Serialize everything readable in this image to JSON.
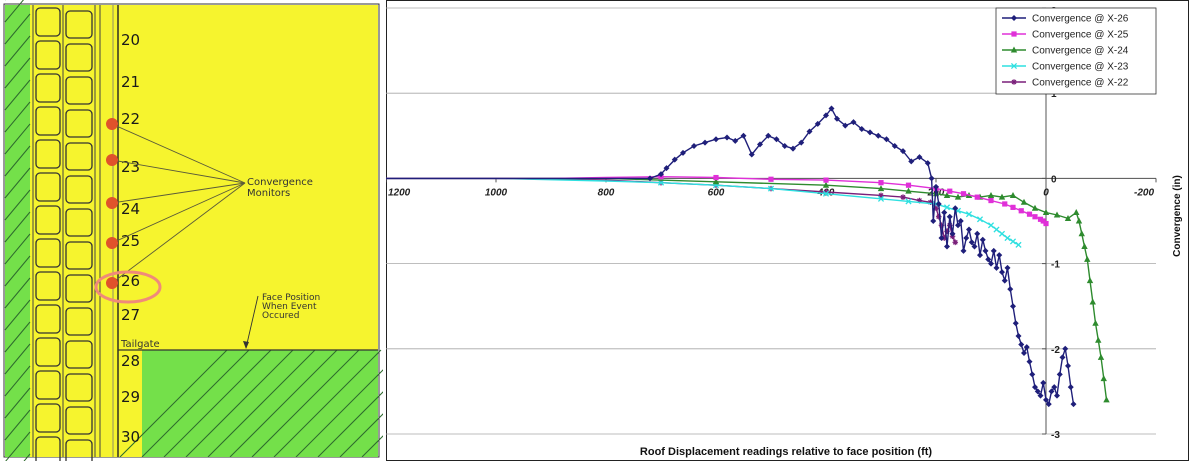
{
  "map": {
    "entry_labels": [
      "20",
      "21",
      "22",
      "23",
      "24",
      "25",
      "26",
      "27",
      "28",
      "29",
      "30"
    ],
    "monitor_entries": [
      "22",
      "23",
      "24",
      "25",
      "26"
    ],
    "highlighted_entry": "26",
    "monitor_label": [
      "Convergence",
      "Monitors"
    ],
    "face_label": [
      "Face Position",
      "When Event",
      "Occured"
    ],
    "tailgate_label": "Tailgate",
    "colors": {
      "panel": "#f6f42e",
      "gob": "#74e04a",
      "monitor": "#e0522b",
      "highlight": "#f08a7a",
      "line": "#5a5a3a"
    }
  },
  "chart_data": {
    "type": "line",
    "title": "",
    "xlabel": "Roof Displacement readings relative to face position (ft)",
    "ylabel": "Convergence (in)",
    "xlim": [
      1200,
      -200
    ],
    "ylim": [
      -3,
      2
    ],
    "x_reversed": true,
    "x_ticks": [
      1200,
      1000,
      800,
      600,
      400,
      200,
      0,
      -200
    ],
    "x_tick_labels": [
      "1200",
      "1000",
      "800",
      "600",
      "400",
      "200",
      "0",
      "-200"
    ],
    "y_ticks": [
      2,
      1,
      0,
      -1,
      -2,
      -3
    ],
    "y_tick_labels": [
      "2",
      "1",
      "0",
      "-1",
      "-2",
      "-3"
    ],
    "grid": "horizontal",
    "legend_position": "top-right",
    "series": [
      {
        "name": "Convergence @ X-26",
        "color": "#1f1f7a",
        "marker": "diamond",
        "points": [
          [
            1200,
            0
          ],
          [
            1100,
            0
          ],
          [
            1000,
            0
          ],
          [
            900,
            0
          ],
          [
            800,
            0
          ],
          [
            720,
            0
          ],
          [
            700,
            0.05
          ],
          [
            690,
            0.12
          ],
          [
            675,
            0.22
          ],
          [
            660,
            0.3
          ],
          [
            640,
            0.38
          ],
          [
            620,
            0.42
          ],
          [
            600,
            0.46
          ],
          [
            580,
            0.48
          ],
          [
            565,
            0.44
          ],
          [
            550,
            0.5
          ],
          [
            535,
            0.28
          ],
          [
            520,
            0.4
          ],
          [
            505,
            0.5
          ],
          [
            490,
            0.46
          ],
          [
            475,
            0.38
          ],
          [
            460,
            0.35
          ],
          [
            445,
            0.42
          ],
          [
            430,
            0.55
          ],
          [
            415,
            0.64
          ],
          [
            400,
            0.74
          ],
          [
            390,
            0.82
          ],
          [
            380,
            0.7
          ],
          [
            365,
            0.62
          ],
          [
            350,
            0.66
          ],
          [
            335,
            0.58
          ],
          [
            320,
            0.54
          ],
          [
            305,
            0.5
          ],
          [
            290,
            0.46
          ],
          [
            275,
            0.38
          ],
          [
            260,
            0.32
          ],
          [
            245,
            0.2
          ],
          [
            230,
            0.25
          ],
          [
            215,
            0.18
          ],
          [
            208,
            0.0
          ],
          [
            205,
            -0.5
          ],
          [
            200,
            -0.1
          ],
          [
            195,
            -0.3
          ],
          [
            190,
            -0.7
          ],
          [
            185,
            -0.4
          ],
          [
            180,
            -0.8
          ],
          [
            175,
            -0.45
          ],
          [
            170,
            -0.65
          ],
          [
            165,
            -0.35
          ],
          [
            160,
            -0.55
          ],
          [
            155,
            -0.5
          ],
          [
            150,
            -0.85
          ],
          [
            145,
            -0.7
          ],
          [
            140,
            -0.6
          ],
          [
            135,
            -0.75
          ],
          [
            130,
            -0.8
          ],
          [
            125,
            -0.65
          ],
          [
            120,
            -0.9
          ],
          [
            115,
            -0.72
          ],
          [
            110,
            -0.85
          ],
          [
            105,
            -0.95
          ],
          [
            100,
            -1.0
          ],
          [
            95,
            -0.85
          ],
          [
            90,
            -1.05
          ],
          [
            85,
            -0.9
          ],
          [
            80,
            -1.1
          ],
          [
            75,
            -1.2
          ],
          [
            70,
            -1.05
          ],
          [
            65,
            -1.3
          ],
          [
            60,
            -1.5
          ],
          [
            55,
            -1.7
          ],
          [
            50,
            -1.85
          ],
          [
            45,
            -1.95
          ],
          [
            40,
            -2.05
          ],
          [
            35,
            -1.98
          ],
          [
            30,
            -2.15
          ],
          [
            25,
            -2.3
          ],
          [
            20,
            -2.45
          ],
          [
            15,
            -2.5
          ],
          [
            10,
            -2.55
          ],
          [
            5,
            -2.4
          ],
          [
            0,
            -2.6
          ],
          [
            -5,
            -2.65
          ],
          [
            -10,
            -2.5
          ],
          [
            -15,
            -2.45
          ],
          [
            -20,
            -2.55
          ],
          [
            -25,
            -2.3
          ],
          [
            -30,
            -2.1
          ],
          [
            -35,
            -2.0
          ],
          [
            -40,
            -2.2
          ],
          [
            -45,
            -2.45
          ],
          [
            -50,
            -2.65
          ]
        ]
      },
      {
        "name": "Convergence @ X-25",
        "color": "#e030d8",
        "marker": "square",
        "points": [
          [
            1200,
            0
          ],
          [
            1100,
            0
          ],
          [
            1000,
            0
          ],
          [
            900,
            0
          ],
          [
            800,
            0.01
          ],
          [
            700,
            0.02
          ],
          [
            600,
            0.01
          ],
          [
            500,
            -0.01
          ],
          [
            400,
            -0.02
          ],
          [
            300,
            -0.05
          ],
          [
            250,
            -0.08
          ],
          [
            200,
            -0.12
          ],
          [
            175,
            -0.15
          ],
          [
            150,
            -0.18
          ],
          [
            125,
            -0.22
          ],
          [
            100,
            -0.26
          ],
          [
            75,
            -0.3
          ],
          [
            60,
            -0.34
          ],
          [
            45,
            -0.38
          ],
          [
            30,
            -0.42
          ],
          [
            20,
            -0.45
          ],
          [
            10,
            -0.48
          ],
          [
            5,
            -0.5
          ],
          [
            0,
            -0.53
          ]
        ]
      },
      {
        "name": "Convergence @ X-24",
        "color": "#2e8b2e",
        "marker": "triangle",
        "points": [
          [
            1200,
            0
          ],
          [
            1000,
            0
          ],
          [
            800,
            0
          ],
          [
            600,
            -0.04
          ],
          [
            400,
            -0.08
          ],
          [
            300,
            -0.12
          ],
          [
            250,
            -0.15
          ],
          [
            200,
            -0.18
          ],
          [
            180,
            -0.2
          ],
          [
            160,
            -0.22
          ],
          [
            140,
            -0.2
          ],
          [
            120,
            -0.22
          ],
          [
            100,
            -0.2
          ],
          [
            80,
            -0.22
          ],
          [
            60,
            -0.2
          ],
          [
            40,
            -0.28
          ],
          [
            20,
            -0.35
          ],
          [
            0,
            -0.4
          ],
          [
            -20,
            -0.43
          ],
          [
            -40,
            -0.47
          ],
          [
            -55,
            -0.4
          ],
          [
            -60,
            -0.5
          ],
          [
            -65,
            -0.65
          ],
          [
            -70,
            -0.8
          ],
          [
            -75,
            -0.95
          ],
          [
            -80,
            -1.2
          ],
          [
            -85,
            -1.45
          ],
          [
            -90,
            -1.7
          ],
          [
            -95,
            -1.9
          ],
          [
            -100,
            -2.1
          ],
          [
            -105,
            -2.35
          ],
          [
            -110,
            -2.6
          ]
        ]
      },
      {
        "name": "Convergence @ X-23",
        "color": "#2ee0e0",
        "marker": "x",
        "points": [
          [
            1200,
            0
          ],
          [
            1000,
            0
          ],
          [
            800,
            -0.03
          ],
          [
            700,
            -0.05
          ],
          [
            600,
            -0.08
          ],
          [
            500,
            -0.12
          ],
          [
            400,
            -0.18
          ],
          [
            300,
            -0.24
          ],
          [
            250,
            -0.27
          ],
          [
            200,
            -0.3
          ],
          [
            180,
            -0.34
          ],
          [
            160,
            -0.38
          ],
          [
            140,
            -0.42
          ],
          [
            120,
            -0.48
          ],
          [
            100,
            -0.55
          ],
          [
            90,
            -0.6
          ],
          [
            80,
            -0.65
          ],
          [
            70,
            -0.7
          ],
          [
            60,
            -0.74
          ],
          [
            50,
            -0.78
          ]
        ]
      },
      {
        "name": "Convergence @ X-22",
        "color": "#7a1f7a",
        "marker": "star",
        "points": [
          [
            1200,
            0
          ],
          [
            1000,
            0
          ],
          [
            800,
            -0.02
          ],
          [
            700,
            -0.05
          ],
          [
            600,
            -0.08
          ],
          [
            500,
            -0.12
          ],
          [
            400,
            -0.16
          ],
          [
            300,
            -0.2
          ],
          [
            260,
            -0.22
          ],
          [
            230,
            -0.26
          ],
          [
            210,
            -0.28
          ],
          [
            200,
            -0.35
          ],
          [
            195,
            -0.45
          ],
          [
            190,
            -0.55
          ],
          [
            185,
            -0.7
          ],
          [
            180,
            -0.62
          ],
          [
            175,
            -0.55
          ],
          [
            170,
            -0.68
          ],
          [
            165,
            -0.75
          ]
        ]
      }
    ]
  }
}
